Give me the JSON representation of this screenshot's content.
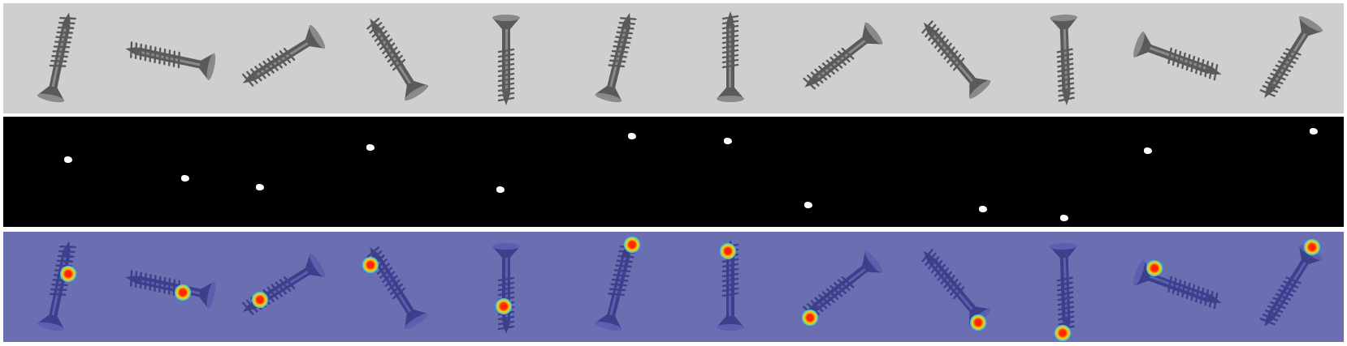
{
  "figure": {
    "rows": [
      "input-images",
      "ground-truth-masks",
      "anomaly-heatmaps"
    ],
    "samples": [
      {
        "angle": 12,
        "defect": [
          0.58,
          0.38
        ],
        "mask": [
          0.58,
          0.39
        ]
      },
      {
        "angle": -78,
        "defect": [
          0.6,
          0.55
        ],
        "mask": [
          0.62,
          0.56
        ]
      },
      {
        "angle": -122,
        "defect": [
          0.3,
          0.62
        ],
        "mask": [
          0.3,
          0.64
        ]
      },
      {
        "angle": -32,
        "defect": [
          0.28,
          0.3
        ],
        "mask": [
          0.28,
          0.28
        ]
      },
      {
        "angle": 180,
        "defect": [
          0.48,
          0.68
        ],
        "mask": [
          0.45,
          0.66
        ]
      },
      {
        "angle": 14,
        "defect": [
          0.62,
          0.12
        ],
        "mask": [
          0.62,
          0.18
        ]
      },
      {
        "angle": 0,
        "defect": [
          0.48,
          0.18
        ],
        "mask": [
          0.48,
          0.22
        ]
      },
      {
        "angle": -128,
        "defect": [
          0.22,
          0.78
        ],
        "mask": [
          0.2,
          0.8
        ]
      },
      {
        "angle": -40,
        "defect": [
          0.72,
          0.82
        ],
        "mask": [
          0.76,
          0.84
        ]
      },
      {
        "angle": 178,
        "defect": [
          0.48,
          0.92
        ],
        "mask": [
          0.49,
          0.92
        ]
      },
      {
        "angle": 110,
        "defect": [
          0.3,
          0.33
        ],
        "mask": [
          0.24,
          0.31
        ]
      },
      {
        "angle": -148,
        "defect": [
          0.7,
          0.14
        ],
        "mask": [
          0.72,
          0.13
        ]
      }
    ],
    "colors": {
      "background_gray": "#cfcfcf",
      "screw_metal": "#5a5a5a",
      "mask_white": "#ffffff",
      "heat_base": "#6a6fb2",
      "heat_hot": "#ff2a00",
      "heat_warm": "#ffd200",
      "heat_cool": "#24c6ff"
    }
  }
}
